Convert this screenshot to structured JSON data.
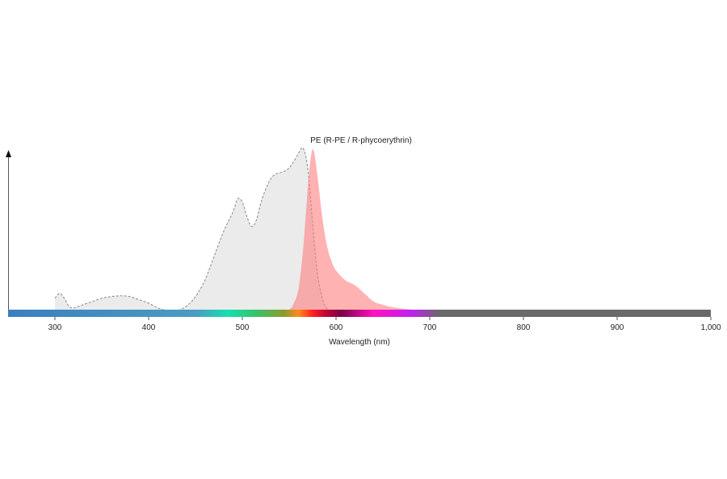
{
  "chart_data": {
    "type": "area",
    "title": "PE (R-PE / R-phycoerythrin)",
    "xlabel": "Wavelength (nm)",
    "ylabel": "",
    "xlim": [
      250,
      1000
    ],
    "ylim": [
      0,
      100
    ],
    "x_ticks": [
      300,
      400,
      500,
      600,
      700,
      800,
      900,
      1000
    ],
    "x_tick_labels": [
      "300",
      "400",
      "500",
      "600",
      "700",
      "800",
      "900",
      "1,000"
    ],
    "grid": false,
    "legend": "none",
    "series": [
      {
        "kind": "excitation",
        "color": "#ebebeb",
        "stroke": "#888888",
        "dashed": true,
        "x": [
          300,
          305,
          310,
          315,
          320,
          330,
          340,
          350,
          360,
          370,
          380,
          390,
          400,
          410,
          420,
          430,
          440,
          450,
          460,
          470,
          480,
          490,
          495,
          500,
          505,
          510,
          515,
          520,
          525,
          530,
          535,
          540,
          545,
          550,
          555,
          560,
          565,
          570,
          575,
          580,
          585,
          590,
          600
        ],
        "y": [
          9,
          12,
          9,
          4,
          3,
          5,
          7,
          9,
          10,
          10.5,
          10,
          8,
          6,
          3,
          1.5,
          1.5,
          4,
          10,
          20,
          35,
          50,
          62,
          70,
          68,
          59,
          53,
          57,
          68,
          76,
          82,
          85,
          86,
          87,
          89,
          93,
          98,
          101,
          88,
          55,
          25,
          10,
          3,
          0
        ]
      },
      {
        "kind": "emission",
        "color": "#ff7f7f",
        "opacity": 0.6,
        "x": [
          540,
          550,
          555,
          560,
          565,
          570,
          573,
          576,
          580,
          585,
          590,
          595,
          600,
          610,
          620,
          630,
          640,
          650,
          660,
          680,
          700,
          720,
          740
        ],
        "y": [
          0,
          2,
          6,
          15,
          40,
          78,
          95,
          100,
          85,
          60,
          42,
          32,
          26,
          20,
          17,
          12,
          7,
          5,
          3.5,
          2,
          1,
          0.5,
          0
        ]
      }
    ],
    "spectrum_bar": {
      "colors": [
        "#3a7fbf",
        "#4a9cc2",
        "#15e0b0",
        "#36c26a",
        "#8f9a2a",
        "#ff8a1a",
        "#ff2020",
        "#c0003a",
        "#7a0044",
        "#ff10c0",
        "#c020f0",
        "#6a6a6a"
      ],
      "stops_nm": [
        250,
        450,
        485,
        515,
        545,
        560,
        575,
        590,
        605,
        640,
        680,
        710
      ]
    }
  }
}
